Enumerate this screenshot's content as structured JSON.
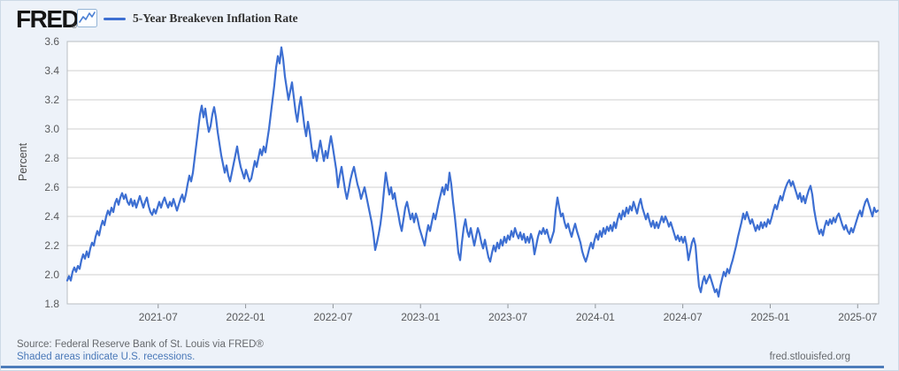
{
  "header": {
    "logo_text": "FRED",
    "logo_registered": "®",
    "legend_label": "5-Year Breakeven Inflation Rate"
  },
  "footer": {
    "source_line": "Source: Federal Reserve Bank of St. Louis via FRED®",
    "recessions_note": "Shaded areas indicate U.S. recessions.",
    "site_link": "fred.stlouisfed.org"
  },
  "colors": {
    "line": "#3d6fd2",
    "background": "#edf2f9",
    "plot_background": "#ffffff",
    "grid": "#cfcfcf",
    "plot_border": "#b9bdc2",
    "axis": "#8e9398",
    "tick_label": "#58595b",
    "source_text": "#66696d",
    "link": "#4978b8",
    "bottom_rule": "#4d7cba"
  },
  "chart_data": {
    "type": "line",
    "title": "5-Year Breakeven Inflation Rate",
    "ylabel": "Percent",
    "ylim": [
      1.8,
      3.6
    ],
    "y_ticks": [
      1.8,
      2.0,
      2.2,
      2.4,
      2.6,
      2.8,
      3.0,
      3.2,
      3.4,
      3.6
    ],
    "xlim": [
      2020.98,
      2025.62
    ],
    "x_tick_positions": [
      2021.5,
      2022.0,
      2022.5,
      2023.0,
      2023.5,
      2024.0,
      2024.5,
      2025.0,
      2025.5
    ],
    "x_tick_labels": [
      "2021-07",
      "2022-01",
      "2022-07",
      "2023-01",
      "2023-07",
      "2024-01",
      "2024-07",
      "2025-01",
      "2025-07"
    ],
    "grid": true,
    "legend_position": "top-left",
    "series": [
      {
        "name": "5-Year Breakeven Inflation Rate",
        "x0": 2020.98,
        "dx": 0.01012,
        "values": [
          1.96,
          1.99,
          1.96,
          2.02,
          2.05,
          2.02,
          2.06,
          2.04,
          2.1,
          2.14,
          2.11,
          2.16,
          2.12,
          2.18,
          2.22,
          2.2,
          2.26,
          2.3,
          2.27,
          2.33,
          2.37,
          2.34,
          2.4,
          2.44,
          2.41,
          2.46,
          2.43,
          2.49,
          2.52,
          2.48,
          2.53,
          2.56,
          2.52,
          2.55,
          2.5,
          2.48,
          2.52,
          2.47,
          2.51,
          2.46,
          2.5,
          2.54,
          2.5,
          2.46,
          2.5,
          2.53,
          2.47,
          2.43,
          2.41,
          2.45,
          2.42,
          2.46,
          2.5,
          2.46,
          2.5,
          2.53,
          2.49,
          2.46,
          2.5,
          2.47,
          2.52,
          2.48,
          2.44,
          2.48,
          2.52,
          2.55,
          2.5,
          2.55,
          2.62,
          2.68,
          2.64,
          2.7,
          2.8,
          2.9,
          3.0,
          3.1,
          3.16,
          3.08,
          3.14,
          3.05,
          2.98,
          3.02,
          3.1,
          3.15,
          3.08,
          2.98,
          2.9,
          2.82,
          2.76,
          2.7,
          2.75,
          2.68,
          2.64,
          2.7,
          2.76,
          2.82,
          2.88,
          2.8,
          2.74,
          2.7,
          2.66,
          2.72,
          2.68,
          2.64,
          2.66,
          2.72,
          2.78,
          2.74,
          2.8,
          2.86,
          2.82,
          2.88,
          2.84,
          2.92,
          3.0,
          3.1,
          3.2,
          3.3,
          3.42,
          3.5,
          3.45,
          3.56,
          3.48,
          3.36,
          3.28,
          3.2,
          3.26,
          3.32,
          3.22,
          3.12,
          3.05,
          3.15,
          3.22,
          3.12,
          3.02,
          2.95,
          3.05,
          2.98,
          2.88,
          2.8,
          2.85,
          2.78,
          2.85,
          2.92,
          2.85,
          2.78,
          2.85,
          2.8,
          2.88,
          2.95,
          2.88,
          2.8,
          2.72,
          2.6,
          2.68,
          2.74,
          2.66,
          2.58,
          2.52,
          2.58,
          2.65,
          2.7,
          2.74,
          2.68,
          2.62,
          2.58,
          2.52,
          2.56,
          2.6,
          2.54,
          2.48,
          2.42,
          2.36,
          2.28,
          2.17,
          2.22,
          2.28,
          2.35,
          2.45,
          2.58,
          2.7,
          2.62,
          2.55,
          2.6,
          2.52,
          2.56,
          2.48,
          2.42,
          2.35,
          2.3,
          2.38,
          2.46,
          2.5,
          2.44,
          2.38,
          2.42,
          2.36,
          2.42,
          2.38,
          2.32,
          2.28,
          2.24,
          2.2,
          2.28,
          2.34,
          2.3,
          2.36,
          2.42,
          2.38,
          2.44,
          2.5,
          2.55,
          2.6,
          2.55,
          2.62,
          2.58,
          2.7,
          2.62,
          2.5,
          2.4,
          2.28,
          2.15,
          2.1,
          2.22,
          2.32,
          2.38,
          2.3,
          2.26,
          2.32,
          2.26,
          2.2,
          2.26,
          2.32,
          2.28,
          2.22,
          2.18,
          2.24,
          2.18,
          2.12,
          2.09,
          2.15,
          2.2,
          2.16,
          2.22,
          2.18,
          2.24,
          2.2,
          2.26,
          2.22,
          2.27,
          2.24,
          2.3,
          2.26,
          2.32,
          2.28,
          2.25,
          2.29,
          2.24,
          2.28,
          2.22,
          2.26,
          2.22,
          2.28,
          2.24,
          2.14,
          2.2,
          2.26,
          2.3,
          2.28,
          2.32,
          2.28,
          2.31,
          2.26,
          2.22,
          2.26,
          2.3,
          2.44,
          2.53,
          2.46,
          2.4,
          2.42,
          2.36,
          2.32,
          2.35,
          2.3,
          2.26,
          2.31,
          2.35,
          2.3,
          2.26,
          2.22,
          2.16,
          2.12,
          2.09,
          2.13,
          2.18,
          2.22,
          2.18,
          2.24,
          2.28,
          2.24,
          2.3,
          2.26,
          2.32,
          2.28,
          2.33,
          2.3,
          2.34,
          2.3,
          2.36,
          2.32,
          2.38,
          2.42,
          2.38,
          2.44,
          2.4,
          2.46,
          2.42,
          2.47,
          2.44,
          2.5,
          2.46,
          2.42,
          2.48,
          2.52,
          2.46,
          2.42,
          2.38,
          2.42,
          2.37,
          2.33,
          2.37,
          2.32,
          2.36,
          2.32,
          2.36,
          2.4,
          2.36,
          2.4,
          2.37,
          2.33,
          2.36,
          2.32,
          2.28,
          2.24,
          2.27,
          2.23,
          2.26,
          2.22,
          2.26,
          2.2,
          2.1,
          2.16,
          2.22,
          2.25,
          2.2,
          2.05,
          1.92,
          1.88,
          1.95,
          1.99,
          1.94,
          1.97,
          2.0,
          1.96,
          1.92,
          1.88,
          1.9,
          1.85,
          1.92,
          1.97,
          2.02,
          1.99,
          2.04,
          2.01,
          2.06,
          2.1,
          2.15,
          2.2,
          2.26,
          2.31,
          2.36,
          2.42,
          2.38,
          2.43,
          2.39,
          2.35,
          2.38,
          2.34,
          2.3,
          2.34,
          2.31,
          2.36,
          2.32,
          2.36,
          2.33,
          2.38,
          2.35,
          2.39,
          2.44,
          2.48,
          2.45,
          2.5,
          2.54,
          2.51,
          2.56,
          2.6,
          2.63,
          2.65,
          2.61,
          2.64,
          2.6,
          2.56,
          2.52,
          2.56,
          2.5,
          2.54,
          2.49,
          2.54,
          2.58,
          2.61,
          2.55,
          2.45,
          2.38,
          2.32,
          2.28,
          2.31,
          2.27,
          2.33,
          2.37,
          2.34,
          2.38,
          2.35,
          2.39,
          2.36,
          2.4,
          2.42,
          2.38,
          2.34,
          2.31,
          2.34,
          2.3,
          2.28,
          2.32,
          2.29,
          2.33,
          2.37,
          2.41,
          2.44,
          2.4,
          2.46,
          2.5,
          2.52,
          2.48,
          2.44,
          2.4,
          2.46,
          2.43,
          2.44
        ]
      }
    ]
  }
}
